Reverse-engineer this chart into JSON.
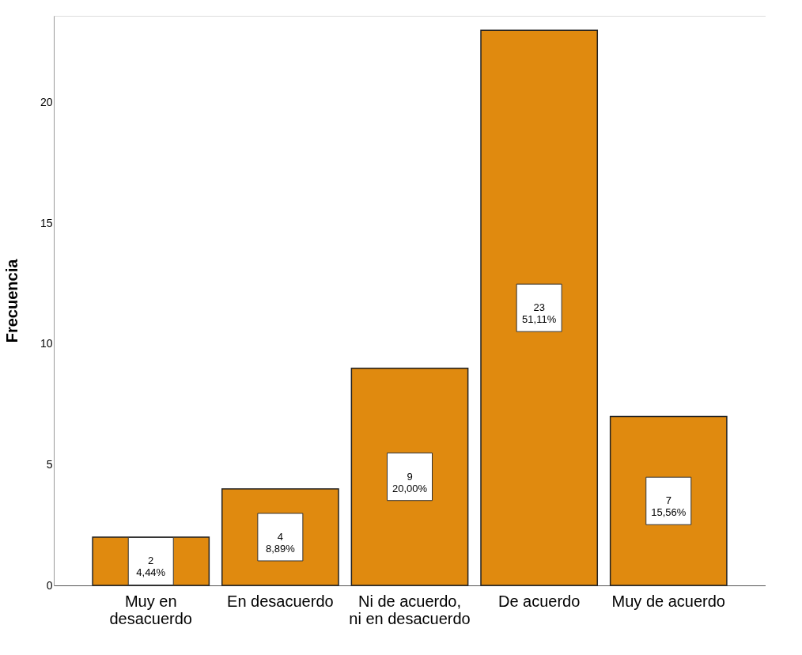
{
  "chart_data": {
    "type": "bar",
    "ylabel": "Frecuencia",
    "categories": [
      "Muy en desacuerdo",
      "En desacuerdo",
      "Ni de acuerdo, ni en desacuerdo",
      "De acuerdo",
      "Muy de acuerdo"
    ],
    "values": [
      2,
      4,
      9,
      23,
      7
    ],
    "value_labels": [
      "2\n4,44%",
      "4\n8,89%",
      "9\n20,00%",
      "23\n51,11%",
      "7\n15,56%"
    ],
    "color": "#e08a0f",
    "ylim": [
      0,
      23.6
    ],
    "yticks": [
      0,
      5,
      10,
      15,
      20
    ],
    "grid": false
  }
}
